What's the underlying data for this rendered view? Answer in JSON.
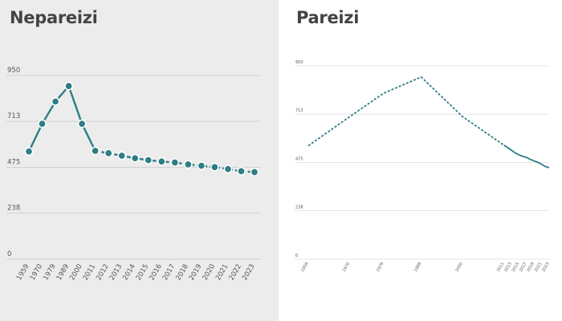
{
  "chart_data": [
    {
      "type": "line",
      "title": "Nepareizi",
      "xlabel": "",
      "ylabel": "",
      "categories": [
        "1959",
        "1970",
        "1979",
        "1989",
        "2000",
        "2011",
        "2012",
        "2013",
        "2014",
        "2015",
        "2016",
        "2017",
        "2018",
        "2019",
        "2020",
        "2021",
        "2022",
        "2023"
      ],
      "values": [
        557,
        700,
        815,
        895,
        700,
        560,
        548,
        535,
        522,
        512,
        505,
        500,
        490,
        483,
        476,
        466,
        455,
        450
      ],
      "ylim": [
        0,
        950
      ],
      "y_ticks": [
        "0",
        "238",
        "475",
        "713",
        "950"
      ],
      "x_scale": "categorical",
      "markers": true,
      "grid": true,
      "color": "#2e7d85"
    },
    {
      "type": "line",
      "title": "Pareizi",
      "xlabel": "",
      "ylabel": "",
      "x": [
        1959,
        1970,
        1979,
        1989,
        2000,
        2011,
        2012,
        2013,
        2014,
        2015,
        2016,
        2017,
        2018,
        2019,
        2020,
        2021,
        2022,
        2023
      ],
      "values": [
        557,
        700,
        815,
        895,
        700,
        560,
        548,
        535,
        522,
        512,
        505,
        500,
        490,
        483,
        476,
        466,
        455,
        450
      ],
      "x_tick_labels": [
        "1959",
        "1970",
        "1979",
        "1989",
        "2000",
        "2011",
        "2013",
        "2015",
        "2017",
        "2019",
        "2021",
        "2023"
      ],
      "ylim": [
        0,
        950
      ],
      "y_ticks": [
        "0",
        "238",
        "475",
        "713",
        "950"
      ],
      "x_scale": "linear-time",
      "markers": false,
      "grid": true,
      "color": "#2e7d85"
    }
  ]
}
